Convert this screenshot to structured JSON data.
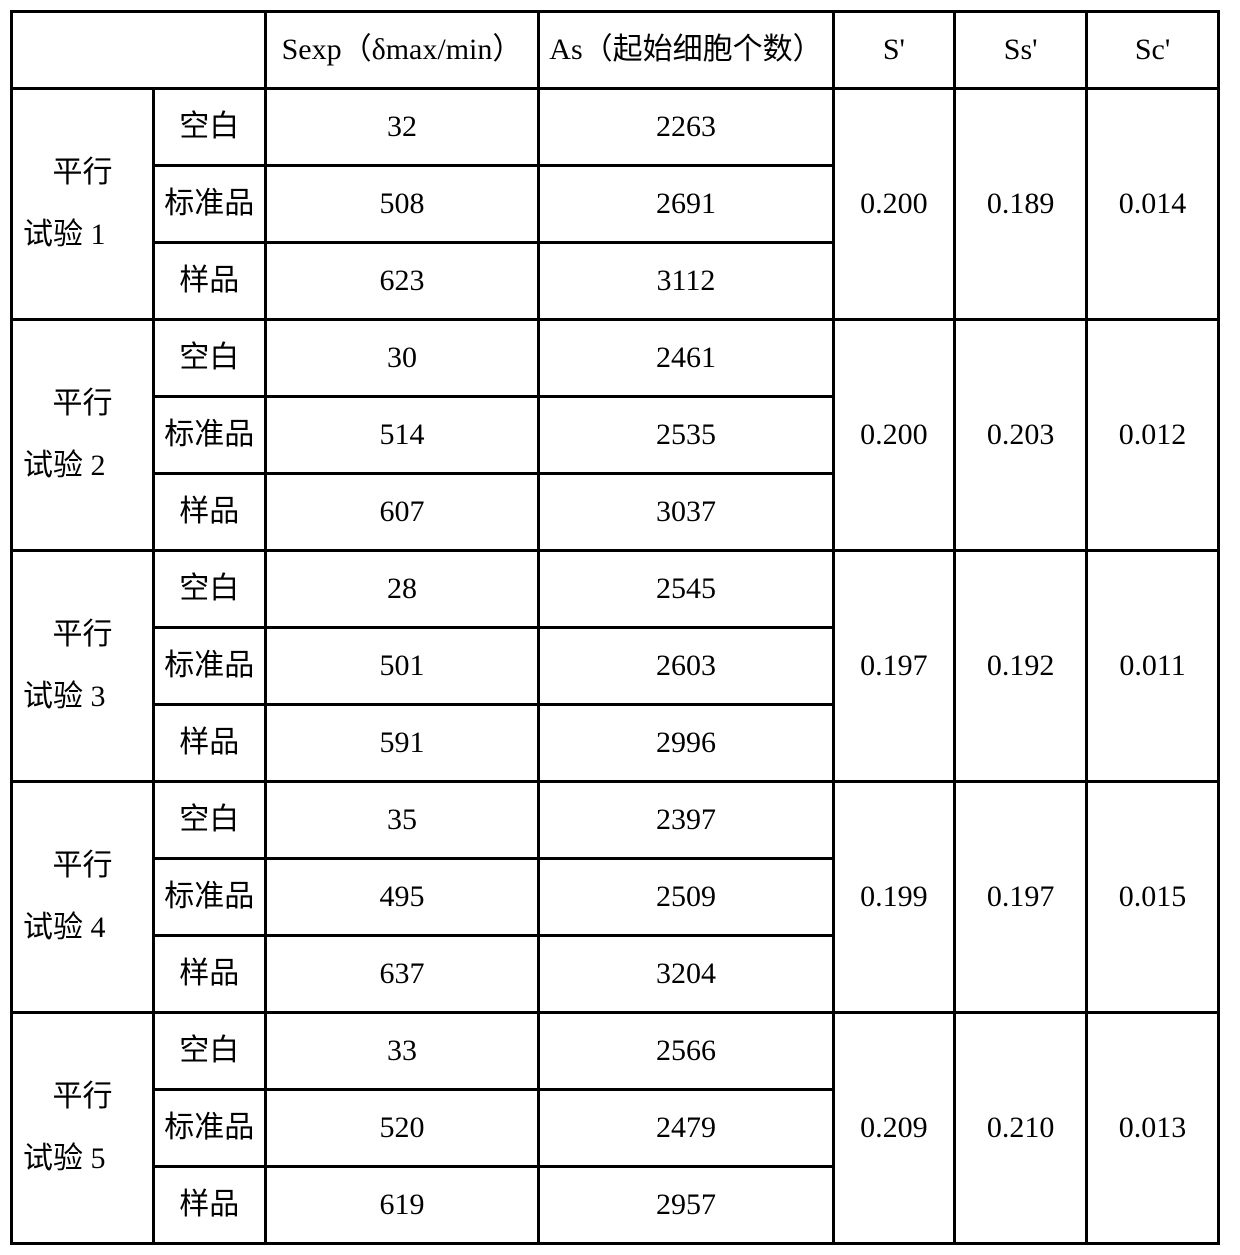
{
  "table": {
    "border_color": "#000000",
    "background_color": "#ffffff",
    "text_color": "#000000",
    "font_size_pt": 22,
    "columns": {
      "trial_sample_merged_header": "",
      "sexp": "Sexp（δmax/min）",
      "as": "As（起始细胞个数）",
      "s_prime": "S'",
      "ss_prime": "Ss'",
      "sc_prime": "Sc'"
    },
    "sample_labels": {
      "blank": "空白",
      "standard": "标准品",
      "sample": "样品"
    },
    "trials": [
      {
        "name_line1": "平行",
        "name_line2": "试验 1",
        "rows": [
          {
            "type": "blank",
            "sexp": "32",
            "as": "2263"
          },
          {
            "type": "standard",
            "sexp": "508",
            "as": "2691"
          },
          {
            "type": "sample",
            "sexp": "623",
            "as": "3112"
          }
        ],
        "s_prime": "0.200",
        "ss_prime": "0.189",
        "sc_prime": "0.014"
      },
      {
        "name_line1": "平行",
        "name_line2": "试验 2",
        "rows": [
          {
            "type": "blank",
            "sexp": "30",
            "as": "2461"
          },
          {
            "type": "standard",
            "sexp": "514",
            "as": "2535"
          },
          {
            "type": "sample",
            "sexp": "607",
            "as": "3037"
          }
        ],
        "s_prime": "0.200",
        "ss_prime": "0.203",
        "sc_prime": "0.012"
      },
      {
        "name_line1": "平行",
        "name_line2": "试验 3",
        "rows": [
          {
            "type": "blank",
            "sexp": "28",
            "as": "2545"
          },
          {
            "type": "standard",
            "sexp": "501",
            "as": "2603"
          },
          {
            "type": "sample",
            "sexp": "591",
            "as": "2996"
          }
        ],
        "s_prime": "0.197",
        "ss_prime": "0.192",
        "sc_prime": "0.011"
      },
      {
        "name_line1": "平行",
        "name_line2": "试验 4",
        "rows": [
          {
            "type": "blank",
            "sexp": "35",
            "as": "2397"
          },
          {
            "type": "standard",
            "sexp": "495",
            "as": "2509"
          },
          {
            "type": "sample",
            "sexp": "637",
            "as": "3204"
          }
        ],
        "s_prime": "0.199",
        "ss_prime": "0.197",
        "sc_prime": "0.015"
      },
      {
        "name_line1": "平行",
        "name_line2": "试验 5",
        "rows": [
          {
            "type": "blank",
            "sexp": "33",
            "as": "2566"
          },
          {
            "type": "standard",
            "sexp": "520",
            "as": "2479"
          },
          {
            "type": "sample",
            "sexp": "619",
            "as": "2957"
          }
        ],
        "s_prime": "0.209",
        "ss_prime": "0.210",
        "sc_prime": "0.013"
      }
    ]
  }
}
